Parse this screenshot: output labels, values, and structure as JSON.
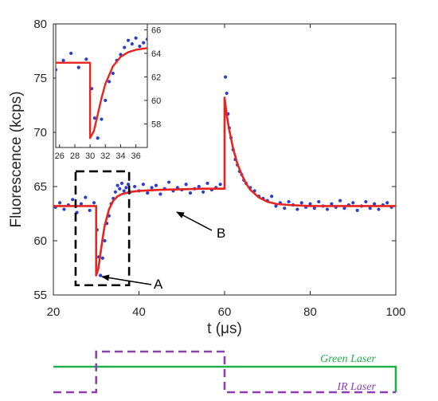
{
  "chart_data": {
    "type": "scatter",
    "xlabel": "t (μs)",
    "ylabel": "Fluorescence (kcps)",
    "xlim": [
      20,
      100
    ],
    "ylim": [
      55,
      80
    ],
    "xticks": [
      "20",
      "40",
      "60",
      "80",
      "100"
    ],
    "yticks": [
      "55",
      "60",
      "65",
      "70",
      "75",
      "80"
    ],
    "grid": false,
    "series": [
      {
        "role": "measured points",
        "style": "blue dots",
        "x": [
          20.5,
          21.5,
          22.5,
          23.5,
          24.5,
          25.5,
          26.5,
          27.5,
          28.5,
          29.5,
          30.2,
          30.6,
          31.0,
          31.5,
          32.0,
          32.5,
          33.0,
          33.5,
          34.0,
          34.5,
          35.0,
          35.5,
          36.0,
          36.5,
          37.0,
          37.5,
          38.0,
          39.0,
          40.0,
          41.0,
          42.0,
          43.0,
          44.0,
          45.0,
          46.0,
          47.0,
          48.0,
          49.0,
          50.0,
          51.0,
          52.0,
          53.0,
          54.0,
          55.0,
          56.0,
          57.0,
          58.0,
          59.0,
          60.2,
          60.5,
          60.8,
          61.1,
          61.5,
          62.0,
          62.5,
          63.0,
          63.5,
          64.0,
          64.5,
          65.0,
          66.0,
          67.0,
          68.0,
          69.0,
          70.0,
          71.0,
          72.0,
          73.0,
          74.0,
          75.0,
          76.0,
          77.0,
          78.0,
          79.0,
          80.0,
          81.0,
          82.0,
          83.0,
          84.0,
          85.0,
          86.0,
          87.0,
          88.0,
          89.0,
          90.0,
          91.0,
          92.0,
          93.0,
          94.0,
          95.0,
          96.0,
          97.0,
          98.0,
          99.0
        ],
        "y": [
          63.1,
          63.5,
          62.9,
          63.3,
          63.8,
          62.6,
          63.4,
          64.0,
          62.8,
          63.5,
          61.0,
          58.5,
          56.8,
          58.4,
          60.0,
          61.6,
          62.3,
          63.4,
          63.9,
          64.5,
          65.1,
          64.8,
          65.3,
          64.6,
          64.9,
          65.2,
          64.5,
          65.0,
          64.6,
          65.2,
          64.4,
          64.9,
          65.1,
          64.3,
          64.8,
          65.4,
          64.6,
          64.9,
          64.7,
          65.2,
          64.4,
          64.8,
          65.0,
          64.5,
          65.3,
          64.7,
          64.9,
          65.2,
          75.1,
          73.6,
          71.7,
          70.4,
          69.5,
          68.4,
          67.5,
          67.0,
          66.4,
          66.1,
          65.6,
          65.3,
          64.9,
          64.6,
          64.1,
          63.9,
          63.7,
          64.1,
          63.2,
          63.5,
          63.0,
          63.6,
          63.3,
          62.9,
          63.5,
          63.1,
          63.4,
          63.0,
          63.6,
          63.2,
          62.9,
          63.4,
          63.1,
          63.7,
          63.0,
          63.3,
          63.5,
          62.8,
          63.2,
          63.6,
          63.0,
          63.4,
          62.9,
          63.3,
          63.5,
          63.1
        ]
      },
      {
        "role": "fit",
        "style": "red line",
        "x": [
          20,
          30.0,
          30.0,
          30.5,
          31.0,
          31.5,
          32.0,
          33.0,
          34.0,
          35.0,
          36.0,
          38.0,
          40.0,
          45.0,
          50.0,
          55.0,
          60.0,
          60.0,
          60.5,
          61.0,
          62.0,
          63.0,
          64.0,
          65.0,
          66.0,
          68.0,
          70.0,
          72.0,
          75.0,
          80.0,
          85.0,
          90.0,
          95.0,
          100
        ],
        "y": [
          63.2,
          63.2,
          56.8,
          57.4,
          58.8,
          60.2,
          61.4,
          62.9,
          63.7,
          64.1,
          64.3,
          64.5,
          64.6,
          64.7,
          64.75,
          64.8,
          64.8,
          73.2,
          71.6,
          70.4,
          68.5,
          67.1,
          66.1,
          65.3,
          64.7,
          64.0,
          63.6,
          63.4,
          63.3,
          63.2,
          63.2,
          63.2,
          63.2,
          63.2
        ]
      }
    ],
    "inset": {
      "xlim": [
        25.5,
        37.5
      ],
      "ylim": [
        56,
        66.5
      ],
      "xticks": [
        "26",
        "28",
        "30",
        "32",
        "34",
        "36"
      ],
      "yticks": [
        "58",
        "60",
        "62",
        "64",
        "66"
      ],
      "y_axis_side": "right"
    },
    "annotations": [
      {
        "text": "A",
        "target": "dip near t = 30 μs"
      },
      {
        "text": "B",
        "target": "plateau near t = 45 μs"
      }
    ],
    "laser_timing": [
      {
        "name": "Green Laser",
        "color": "#1fb24a",
        "on_from": 20,
        "on_to": 100
      },
      {
        "name": "IR Laser",
        "color": "#8a3fb5",
        "on_from": 30,
        "on_to": 60
      }
    ],
    "colors": {
      "points": "#2b3fcf",
      "fit": "#e8241f",
      "box": "#000000"
    }
  }
}
